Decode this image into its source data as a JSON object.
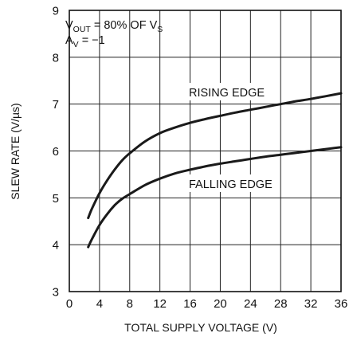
{
  "chart_data": {
    "type": "line",
    "title": "",
    "xlabel": "TOTAL SUPPLY VOLTAGE (V)",
    "ylabel": "SLEW RATE (V/µs)",
    "xlim": [
      0,
      36
    ],
    "ylim": [
      3,
      9
    ],
    "xticks": [
      "0",
      "4",
      "8",
      "12",
      "16",
      "20",
      "24",
      "28",
      "32",
      "36"
    ],
    "yticks": [
      "3",
      "4",
      "5",
      "6",
      "7",
      "8",
      "9"
    ],
    "grid": true,
    "conditions": {
      "line1": {
        "main": "V",
        "sub1": "OUT",
        "mid": " = 80% OF V",
        "sub2": "S"
      },
      "line2": {
        "main": "A",
        "sub1": "V",
        "mid": " = −1"
      }
    },
    "series": [
      {
        "name": "RISING EDGE",
        "x": [
          2.5,
          3,
          4,
          5,
          6,
          7,
          8,
          10,
          12,
          14,
          16,
          18,
          20,
          22,
          24,
          26,
          28,
          30,
          32,
          34,
          36
        ],
        "y": [
          4.57,
          4.77,
          5.1,
          5.37,
          5.6,
          5.8,
          5.95,
          6.2,
          6.38,
          6.5,
          6.6,
          6.68,
          6.75,
          6.82,
          6.88,
          6.94,
          7.0,
          7.06,
          7.11,
          7.17,
          7.23
        ]
      },
      {
        "name": "FALLING EDGE",
        "x": [
          2.5,
          3,
          4,
          5,
          6,
          7,
          8,
          10,
          12,
          14,
          16,
          18,
          20,
          22,
          24,
          26,
          28,
          30,
          32,
          34,
          36
        ],
        "y": [
          3.95,
          4.12,
          4.42,
          4.65,
          4.84,
          4.98,
          5.08,
          5.27,
          5.41,
          5.52,
          5.6,
          5.67,
          5.73,
          5.78,
          5.83,
          5.88,
          5.92,
          5.96,
          6.0,
          6.04,
          6.08
        ]
      }
    ]
  }
}
